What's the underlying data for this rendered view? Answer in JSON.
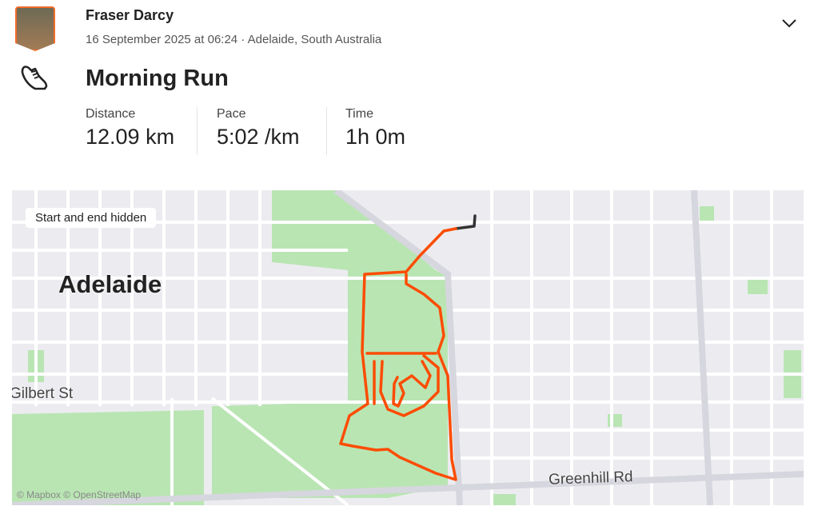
{
  "athlete": {
    "name": "Fraser Darcy",
    "meta": "16 September 2025 at 06:24 · Adelaide, South Australia"
  },
  "activity": {
    "type_icon": "running-shoe-icon",
    "title": "Morning Run"
  },
  "stats": [
    {
      "label": "Distance",
      "value": "12.09 km"
    },
    {
      "label": "Pace",
      "value": "5:02 /km"
    },
    {
      "label": "Time",
      "value": "1h 0m"
    }
  ],
  "map": {
    "privacy_chip": "Start and end hidden",
    "city_label": "Adelaide",
    "streets": [
      "Gilbert St",
      "Greenhill Rd"
    ],
    "attribution": "© Mapbox © OpenStreetMap",
    "route_color": "#fc4c02",
    "hidden_segment_color": "#333333"
  },
  "colors": {
    "accent": "#fc4c02",
    "park": "#b7e4b0",
    "road": "#ffffff",
    "land": "#ececf0"
  }
}
